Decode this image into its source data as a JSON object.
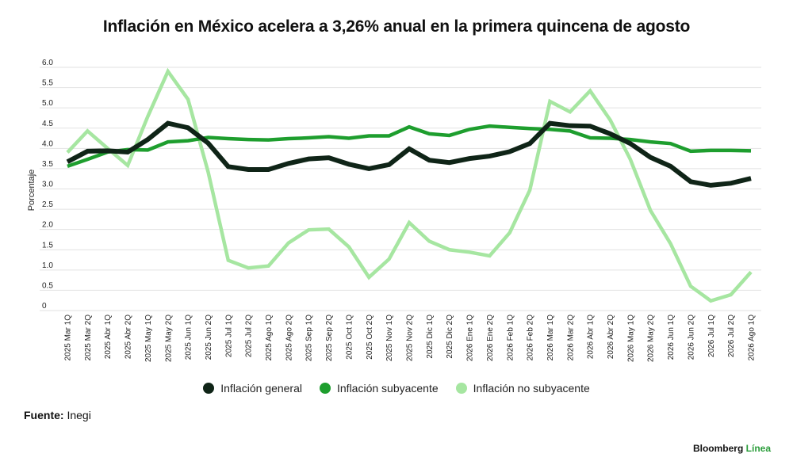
{
  "chart_data": {
    "type": "line",
    "title": "Inflación en México acelera a 3,26% anual en la primera quincena de agosto",
    "ylabel": "Porcentaje",
    "xlabel": "",
    "ylim": [
      0,
      6.0
    ],
    "yticks": [
      "0",
      "0.5",
      "1.0",
      "1.5",
      "2.0",
      "2.5",
      "3.0",
      "3.5",
      "4.0",
      "4.5",
      "5.0",
      "5.5",
      "6.0"
    ],
    "grid": true,
    "legend_position": "bottom",
    "categories": [
      "2025 Mar 1Q",
      "2025 Mar 2Q",
      "2025 Abr 1Q",
      "2025 Abr 2Q",
      "2025 May 1Q",
      "2025 May 2Q",
      "2025 Jun 1Q",
      "2025 Jun 2Q",
      "2025 Jul 1Q",
      "2025 Jul 2Q",
      "2025 Ago 1Q",
      "2025 Ago 2Q",
      "2025 Sep 1Q",
      "2025 Sep 2Q",
      "2025 Oct 1Q",
      "2025 Oct 2Q",
      "2025 Nov 1Q",
      "2025 Nov 2Q",
      "2025 Dic 1Q",
      "2025 Dic 2Q",
      "2026 Ene 1Q",
      "2026 Ene 2Q",
      "2026 Feb 1Q",
      "2026 Feb 2Q",
      "2026 Mar 1Q",
      "2026 Mar 2Q",
      "2026 Abr 1Q",
      "2026 Abr 2Q",
      "2026 May 1Q",
      "2026 May 2Q",
      "2026 Jun 1Q",
      "2026 Jun 2Q",
      "2026 Jul 1Q",
      "2026 Jul 2Q",
      "2026 Ago 1Q"
    ],
    "series": [
      {
        "name": "Inflación general",
        "color": "#0f2417",
        "values": [
          3.67,
          3.93,
          3.94,
          3.91,
          4.22,
          4.62,
          4.51,
          4.13,
          3.55,
          3.48,
          3.48,
          3.63,
          3.74,
          3.77,
          3.61,
          3.5,
          3.6,
          3.99,
          3.71,
          3.65,
          3.75,
          3.81,
          3.92,
          4.12,
          4.62,
          4.56,
          4.55,
          4.36,
          4.12,
          3.78,
          3.56,
          3.18,
          3.09,
          3.14,
          3.26
        ]
      },
      {
        "name": "Inflación subyacente",
        "color": "#1e9e2e",
        "values": [
          3.56,
          3.73,
          3.91,
          3.97,
          3.96,
          4.16,
          4.19,
          4.27,
          4.24,
          4.22,
          4.21,
          4.24,
          4.26,
          4.29,
          4.25,
          4.31,
          4.31,
          4.53,
          4.36,
          4.32,
          4.47,
          4.55,
          4.52,
          4.49,
          4.47,
          4.43,
          4.26,
          4.25,
          4.22,
          4.16,
          4.12,
          3.93,
          3.95,
          3.95,
          3.94
        ]
      },
      {
        "name": "Inflación no subyacente",
        "color": "#a6e6a1",
        "values": [
          3.9,
          4.43,
          4.0,
          3.58,
          4.79,
          5.9,
          5.21,
          3.42,
          1.24,
          1.05,
          1.1,
          1.67,
          1.99,
          2.01,
          1.57,
          0.82,
          1.27,
          2.17,
          1.71,
          1.5,
          1.44,
          1.35,
          1.92,
          2.97,
          5.16,
          4.9,
          5.42,
          4.7,
          3.73,
          2.47,
          1.65,
          0.6,
          0.24,
          0.39,
          0.95
        ]
      }
    ]
  },
  "source": {
    "label": "Fuente:",
    "text": "Inegi"
  },
  "brand": {
    "main": "Bloomberg",
    "accent": "Línea"
  }
}
